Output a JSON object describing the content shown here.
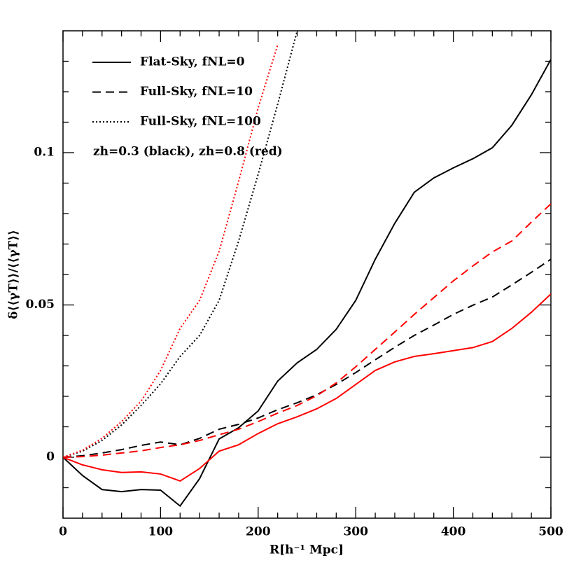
{
  "chart_data": {
    "type": "line",
    "xlabel": "R[h⁻¹ Mpc]",
    "ylabel": "δ⟨⟨γT⟩⟩/⟨⟨γT⟩⟩",
    "annotation": "zh=0.3 (black), zh=0.8 (red)",
    "xlim": [
      0,
      500
    ],
    "ylim": [
      -0.02,
      0.14
    ],
    "xticks": [
      0,
      100,
      200,
      300,
      400,
      500
    ],
    "yticks": [
      0,
      0.05,
      0.1
    ],
    "xminor": [
      20,
      40,
      60,
      80,
      120,
      140,
      160,
      180,
      220,
      240,
      260,
      280,
      320,
      340,
      360,
      380,
      420,
      440,
      460,
      480
    ],
    "yminor": [
      -0.01,
      0.01,
      0.02,
      0.03,
      0.04,
      0.06,
      0.07,
      0.08,
      0.09,
      0.11,
      0.12,
      0.13
    ],
    "legend": [
      {
        "label": "Flat-Sky, fNL=0",
        "style": "solid"
      },
      {
        "label": "Full-Sky, fNL=10",
        "style": "dashed"
      },
      {
        "label": "Full-Sky, fNL=100",
        "style": "dotted"
      }
    ],
    "x": [
      0,
      20,
      40,
      60,
      80,
      100,
      120,
      140,
      160,
      180,
      200,
      220,
      240,
      260,
      280,
      300,
      320,
      340,
      360,
      380,
      400,
      420,
      440,
      460,
      480,
      500
    ],
    "series": [
      {
        "color": "#000000",
        "style": "solid",
        "values": [
          0,
          -0.006,
          -0.0106,
          -0.0113,
          -0.0106,
          -0.0108,
          -0.016,
          -0.007,
          0.006,
          0.0097,
          0.0152,
          0.025,
          0.031,
          0.0354,
          0.042,
          0.0515,
          0.065,
          0.0768,
          0.087,
          0.0917,
          0.095,
          0.098,
          0.1016,
          0.109,
          0.119,
          0.1306
        ]
      },
      {
        "color": "#ff0000",
        "style": "solid",
        "values": [
          0,
          -0.0025,
          -0.0041,
          -0.005,
          -0.0048,
          -0.0055,
          -0.0078,
          -0.0037,
          0.002,
          0.0041,
          0.0078,
          0.011,
          0.0133,
          0.0159,
          0.0193,
          0.0239,
          0.0285,
          0.0313,
          0.0331,
          0.034,
          0.035,
          0.036,
          0.038,
          0.0423,
          0.0476,
          0.0536
        ]
      },
      {
        "color": "#000000",
        "style": "dashed",
        "values": [
          0,
          0.0005,
          0.0014,
          0.0025,
          0.0039,
          0.005,
          0.0041,
          0.0062,
          0.0092,
          0.0108,
          0.0129,
          0.0156,
          0.0179,
          0.0205,
          0.0239,
          0.0278,
          0.032,
          0.0361,
          0.04,
          0.0434,
          0.0469,
          0.0499,
          0.0526,
          0.0566,
          0.0607,
          0.065
        ]
      },
      {
        "color": "#ff0000",
        "style": "dashed",
        "values": [
          0,
          0.0002,
          0.0007,
          0.0014,
          0.0021,
          0.0032,
          0.0041,
          0.0055,
          0.0074,
          0.0092,
          0.0117,
          0.0145,
          0.017,
          0.0202,
          0.0244,
          0.0297,
          0.0354,
          0.0411,
          0.0469,
          0.0524,
          0.0579,
          0.0628,
          0.0674,
          0.071,
          0.0772,
          0.0832
        ]
      },
      {
        "color": "#000000",
        "style": "dotted",
        "values": [
          0,
          0.002,
          0.0055,
          0.0106,
          0.017,
          0.0241,
          0.0331,
          0.04,
          0.0515,
          0.071,
          0.0929,
          0.1159,
          0.14,
          null,
          null,
          null,
          null,
          null,
          null,
          null,
          null,
          null,
          null,
          null,
          null,
          null
        ]
      },
      {
        "color": "#ff0000",
        "style": "dotted",
        "values": [
          0,
          0.0023,
          0.0062,
          0.0117,
          0.0184,
          0.0285,
          0.0423,
          0.0515,
          0.0676,
          0.0906,
          0.1147,
          0.1354,
          null,
          null,
          null,
          null,
          null,
          null,
          null,
          null,
          null,
          null,
          null,
          null,
          null,
          null
        ]
      }
    ]
  }
}
